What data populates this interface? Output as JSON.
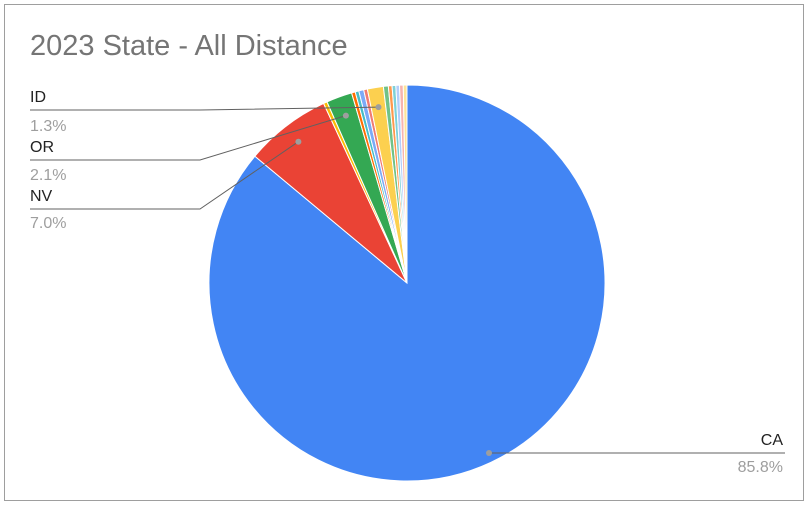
{
  "chart_data": {
    "type": "pie",
    "title": "2023 State - All Distance",
    "slices": [
      {
        "name": "CA",
        "value": 85.8,
        "label": "85.8%",
        "color": "#4285f4"
      },
      {
        "name": "NV",
        "value": 7.0,
        "label": "7.0%",
        "color": "#ea4335"
      },
      {
        "name": "",
        "value": 0.3,
        "color": "#fbbc04"
      },
      {
        "name": "OR",
        "value": 2.1,
        "label": "2.1%",
        "color": "#34a853"
      },
      {
        "name": "",
        "value": 0.3,
        "color": "#ff6d01"
      },
      {
        "name": "",
        "value": 0.3,
        "color": "#46bdc6"
      },
      {
        "name": "",
        "value": 0.4,
        "color": "#7baaf7"
      },
      {
        "name": "",
        "value": 0.3,
        "color": "#f07b72"
      },
      {
        "name": "ID",
        "value": 1.3,
        "label": "1.3%",
        "color": "#fcd04f"
      },
      {
        "name": "",
        "value": 0.4,
        "color": "#71c287"
      },
      {
        "name": "",
        "value": 0.3,
        "color": "#ff994d"
      },
      {
        "name": "",
        "value": 0.3,
        "color": "#7ed1d7"
      },
      {
        "name": "",
        "value": 0.3,
        "color": "#b3cefb"
      },
      {
        "name": "",
        "value": 0.3,
        "color": "#f7b4ae"
      },
      {
        "name": "",
        "value": 0.3,
        "color": "#fde49b"
      }
    ]
  }
}
